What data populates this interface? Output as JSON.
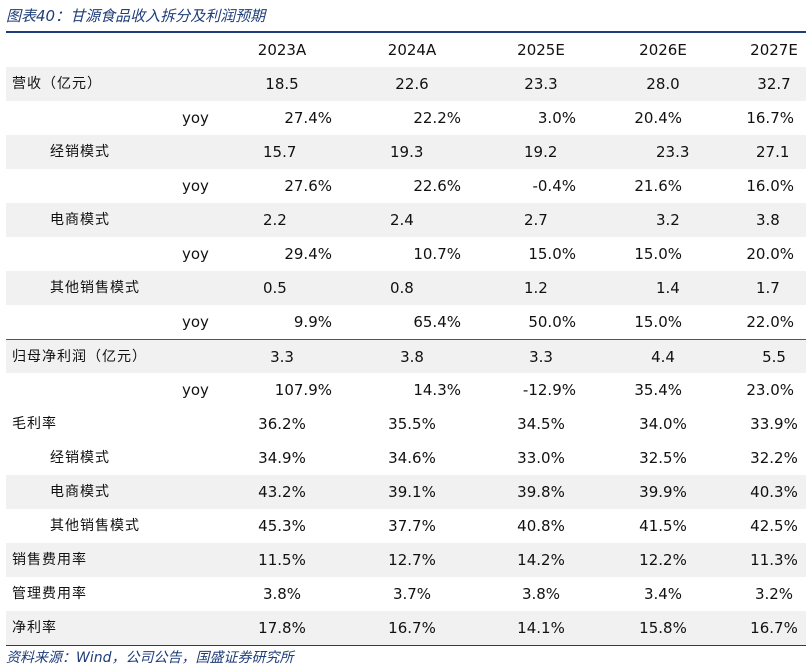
{
  "title": "图表40：甘源食品收入拆分及利润预期",
  "source": "资料来源：Wind，公司公告，国盛证券研究所",
  "header": [
    "2023A",
    "2024A",
    "2025E",
    "2026E",
    "2027E"
  ],
  "rows": [
    {
      "label": "营收（亿元）",
      "indent": 0,
      "align": "center",
      "shaded": true,
      "sep": false,
      "values": [
        "18.5",
        "22.6",
        "23.3",
        "28.0",
        "32.7"
      ]
    },
    {
      "label": "yoy",
      "indent": 2,
      "align": "right",
      "shaded": false,
      "sep": false,
      "values": [
        "27.4%",
        "22.2%",
        "3.0%",
        "20.4%",
        "16.7%"
      ]
    },
    {
      "label": "经销模式",
      "indent": 1,
      "align": "left",
      "shaded": true,
      "sep": false,
      "values": [
        "15.7",
        "19.3",
        "19.2",
        "23.3",
        "27.1"
      ]
    },
    {
      "label": "yoy",
      "indent": 2,
      "align": "right",
      "shaded": false,
      "sep": false,
      "values": [
        "27.6%",
        "22.6%",
        "-0.4%",
        "21.6%",
        "16.0%"
      ]
    },
    {
      "label": "电商模式",
      "indent": 1,
      "align": "left",
      "shaded": true,
      "sep": false,
      "values": [
        "2.2",
        "2.4",
        "2.7",
        "3.2",
        "3.8"
      ]
    },
    {
      "label": "yoy",
      "indent": 2,
      "align": "right",
      "shaded": false,
      "sep": false,
      "values": [
        "29.4%",
        "10.7%",
        "15.0%",
        "15.0%",
        "20.0%"
      ]
    },
    {
      "label": "其他销售模式",
      "indent": 1,
      "align": "left",
      "shaded": true,
      "sep": false,
      "values": [
        "0.5",
        "0.8",
        "1.2",
        "1.4",
        "1.7"
      ]
    },
    {
      "label": "yoy",
      "indent": 2,
      "align": "right",
      "shaded": false,
      "sep": false,
      "values": [
        "9.9%",
        "65.4%",
        "50.0%",
        "15.0%",
        "22.0%"
      ]
    },
    {
      "label": "归母净利润（亿元）",
      "indent": 0,
      "align": "center",
      "shaded": true,
      "sep": true,
      "values": [
        "3.3",
        "3.8",
        "3.3",
        "4.4",
        "5.5"
      ]
    },
    {
      "label": "yoy",
      "indent": 2,
      "align": "right",
      "shaded": false,
      "sep": false,
      "values": [
        "107.9%",
        "14.3%",
        "-12.9%",
        "35.4%",
        "23.0%"
      ]
    },
    {
      "label": "毛利率",
      "indent": 0,
      "align": "center",
      "shaded": false,
      "sep": false,
      "values": [
        "36.2%",
        "35.5%",
        "34.5%",
        "34.0%",
        "33.9%"
      ]
    },
    {
      "label": "经销模式",
      "indent": 1,
      "align": "center",
      "shaded": false,
      "sep": false,
      "values": [
        "34.9%",
        "34.6%",
        "33.0%",
        "32.5%",
        "32.2%"
      ]
    },
    {
      "label": "电商模式",
      "indent": 1,
      "align": "center",
      "shaded": true,
      "sep": false,
      "values": [
        "43.2%",
        "39.1%",
        "39.8%",
        "39.9%",
        "40.3%"
      ]
    },
    {
      "label": "其他销售模式",
      "indent": 1,
      "align": "center",
      "shaded": false,
      "sep": false,
      "values": [
        "45.3%",
        "37.7%",
        "40.8%",
        "41.5%",
        "42.5%"
      ]
    },
    {
      "label": "销售费用率",
      "indent": 0,
      "align": "center",
      "shaded": true,
      "sep": false,
      "values": [
        "11.5%",
        "12.7%",
        "14.2%",
        "12.2%",
        "11.3%"
      ]
    },
    {
      "label": "管理费用率",
      "indent": 0,
      "align": "center",
      "shaded": false,
      "sep": false,
      "values": [
        "3.8%",
        "3.7%",
        "3.8%",
        "3.4%",
        "3.2%"
      ]
    },
    {
      "label": "净利率",
      "indent": 0,
      "align": "center",
      "shaded": true,
      "sep": false,
      "values": [
        "17.8%",
        "16.7%",
        "14.1%",
        "15.8%",
        "16.7%"
      ]
    }
  ]
}
